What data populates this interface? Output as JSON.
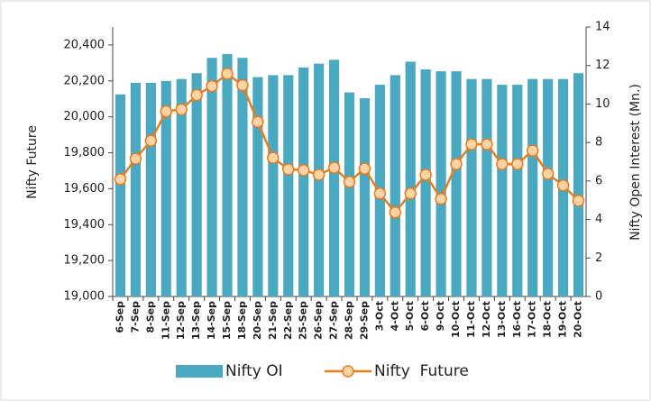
{
  "chart_data": {
    "type": "bar-line",
    "categories": [
      "6-Sep",
      "7-Sep",
      "8-Sep",
      "11-Sep",
      "12-Sep",
      "13-Sep",
      "14-Sep",
      "15-Sep",
      "18-Sep",
      "20-Sep",
      "21-Sep",
      "22-Sep",
      "25-Sep",
      "26-Sep",
      "27-Sep",
      "28-Sep",
      "29-Sep",
      "3-Oct",
      "4-Oct",
      "5-Oct",
      "6-Oct",
      "9-Oct",
      "10-Oct",
      "11-Oct",
      "12-Oct",
      "13-Oct",
      "16-Oct",
      "17-Oct",
      "18-Oct",
      "19-Oct",
      "20-Oct"
    ],
    "series": [
      {
        "name": "Nifty OI",
        "type": "bar",
        "axis": "y2",
        "color": "#4aa8c0",
        "values": [
          10.5,
          11.1,
          11.1,
          11.2,
          11.3,
          11.6,
          12.4,
          12.6,
          12.4,
          11.4,
          11.5,
          11.5,
          11.9,
          12.1,
          12.3,
          10.6,
          10.3,
          11.0,
          11.5,
          12.2,
          11.8,
          11.7,
          11.7,
          11.3,
          11.3,
          11.0,
          11.0,
          11.3,
          11.3,
          11.3,
          11.6
        ]
      },
      {
        "name": "Nifty  Future",
        "type": "line",
        "axis": "y",
        "color": "#e87d1e",
        "marker_fill": "#fcd3a6",
        "values": [
          19653,
          19767,
          19867,
          20031,
          20041,
          20121,
          20171,
          20240,
          20176,
          19972,
          19772,
          19708,
          19703,
          19678,
          19717,
          19638,
          19712,
          19573,
          19468,
          19573,
          19678,
          19543,
          19737,
          19847,
          19847,
          19737,
          19737,
          19812,
          19683,
          19618,
          19533
        ]
      }
    ],
    "y_label": "Nifty Future",
    "y2_label": "Nifty Open Interest (Mn.)",
    "ylim": [
      19000,
      20500
    ],
    "yticks": [
      {
        "value": 19000,
        "label": "19,000"
      },
      {
        "value": 19200,
        "label": "19,200"
      },
      {
        "value": 19400,
        "label": "19,400"
      },
      {
        "value": 19600,
        "label": "19,600"
      },
      {
        "value": 19800,
        "label": "19,800"
      },
      {
        "value": 20000,
        "label": "20,000"
      },
      {
        "value": 20200,
        "label": "20,200"
      },
      {
        "value": 20400,
        "label": "20,400"
      }
    ],
    "y2lim": [
      0,
      14
    ],
    "y2ticks": [
      0,
      2,
      4,
      6,
      8,
      10,
      12,
      14
    ],
    "grid": false
  }
}
